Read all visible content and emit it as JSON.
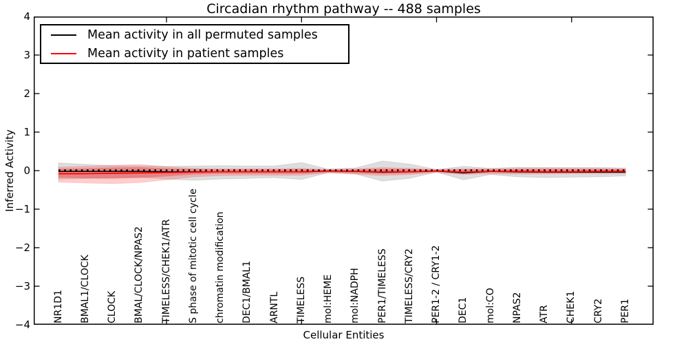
{
  "figure": {
    "title": "Circadian rhythm pathway -- 488 samples",
    "xlabel": "Cellular Entities",
    "ylabel": "Inferred Activity"
  },
  "legend": {
    "items": [
      {
        "label": "Mean activity in all permuted samples",
        "color": "#000000"
      },
      {
        "label": "Mean activity in patient samples",
        "color": "#ff0000"
      }
    ]
  },
  "axes": {
    "y_tick_labels": [
      "4",
      "3",
      "2",
      "1",
      "0",
      "−1",
      "−2",
      "−3",
      "−4"
    ],
    "y_tick_values": [
      4,
      3,
      2,
      1,
      0,
      -1,
      -2,
      -3,
      -4
    ],
    "x_major_tick_indices": [
      4,
      9,
      14,
      19
    ],
    "ylim": [
      -4,
      4
    ]
  },
  "chart_data": {
    "type": "line",
    "title": "Circadian rhythm pathway -- 488 samples",
    "xlabel": "Cellular Entities",
    "ylabel": "Inferred Activity",
    "ylim": [
      -4,
      4
    ],
    "grid": false,
    "legend_position": "upper left",
    "categories": [
      "NR1D1",
      "BMAL1/CLOCK",
      "CLOCK",
      "BMAL/CLOCK/NPAS2",
      "TIMELESS/CHEK1/ATR",
      "S phase of mitotic cell cycle",
      "chromatin modification",
      "DEC1/BMAL1",
      "ARNTL",
      "TIMELESS",
      "mol:HEME",
      "mol:NADPH",
      "PER1/TIMELESS",
      "TIMELESS/CRY2",
      "PER1-2 / CRY1-2",
      "DEC1",
      "mol:CO",
      "NPAS2",
      "ATR",
      "CHEK1",
      "CRY2",
      "PER1"
    ],
    "series": [
      {
        "name": "Mean activity in all permuted samples",
        "color": "#000000",
        "values": [
          -0.02,
          -0.02,
          -0.02,
          -0.02,
          -0.03,
          -0.03,
          -0.03,
          -0.03,
          -0.03,
          -0.03,
          -0.01,
          -0.02,
          -0.04,
          -0.03,
          -0.01,
          -0.06,
          -0.02,
          -0.03,
          -0.04,
          -0.04,
          -0.04,
          -0.04
        ]
      },
      {
        "name": "Mean activity in patient samples",
        "color": "#ff0000",
        "values": [
          -0.08,
          -0.08,
          -0.07,
          -0.06,
          -0.05,
          -0.04,
          -0.03,
          -0.03,
          -0.03,
          -0.03,
          -0.01,
          -0.02,
          -0.03,
          -0.03,
          -0.01,
          -0.04,
          -0.02,
          -0.02,
          -0.03,
          -0.03,
          -0.02,
          -0.02
        ]
      }
    ],
    "bands": [
      {
        "name": "permuted-samples-range",
        "color": "rgba(60,60,60,0.17)",
        "edge": "rgba(0,0,0,0.10)",
        "upper": [
          0.2,
          0.16,
          0.13,
          0.12,
          0.11,
          0.12,
          0.13,
          0.12,
          0.12,
          0.21,
          0.04,
          0.07,
          0.25,
          0.17,
          0.03,
          0.11,
          0.06,
          0.09,
          0.08,
          0.08,
          0.08,
          0.07
        ],
        "lower": [
          -0.22,
          -0.2,
          -0.18,
          -0.17,
          -0.22,
          -0.25,
          -0.22,
          -0.2,
          -0.18,
          -0.23,
          -0.05,
          -0.09,
          -0.27,
          -0.2,
          -0.04,
          -0.24,
          -0.1,
          -0.16,
          -0.18,
          -0.17,
          -0.16,
          -0.14
        ]
      },
      {
        "name": "patient-samples-range",
        "color": "rgba(255,30,30,0.22)",
        "edge": "rgba(255,0,0,0.12)",
        "upper": [
          0.09,
          0.11,
          0.14,
          0.16,
          0.1,
          0.06,
          0.05,
          0.05,
          0.05,
          0.06,
          0.03,
          0.05,
          0.08,
          0.06,
          0.03,
          0.05,
          0.05,
          0.06,
          0.07,
          0.06,
          0.06,
          0.05
        ],
        "lower": [
          -0.3,
          -0.32,
          -0.34,
          -0.31,
          -0.24,
          -0.16,
          -0.13,
          -0.12,
          -0.12,
          -0.12,
          -0.06,
          -0.09,
          -0.13,
          -0.1,
          -0.05,
          -0.1,
          -0.08,
          -0.09,
          -0.09,
          -0.08,
          -0.08,
          -0.08
        ]
      },
      {
        "name": "patient-samples-inner-range",
        "color": "rgba(235,0,0,0.28)",
        "edge": "none",
        "upper": [
          0.05,
          0.06,
          0.08,
          0.09,
          0.06,
          0.04,
          0.03,
          0.03,
          0.03,
          0.04,
          0.02,
          0.03,
          0.05,
          0.04,
          0.02,
          0.03,
          0.03,
          0.04,
          0.04,
          0.04,
          0.04,
          0.03
        ],
        "lower": [
          -0.18,
          -0.2,
          -0.21,
          -0.19,
          -0.15,
          -0.1,
          -0.08,
          -0.08,
          -0.08,
          -0.08,
          -0.04,
          -0.06,
          -0.09,
          -0.07,
          -0.03,
          -0.07,
          -0.05,
          -0.06,
          -0.06,
          -0.06,
          -0.05,
          -0.05
        ]
      }
    ],
    "zero_reference_line": {
      "y": 0.0,
      "style": "dotted",
      "color": "#000000"
    }
  },
  "colors": {
    "permuted_line": "#000000",
    "patient_line": "#ff0000",
    "axis": "#000000",
    "background": "#ffffff"
  }
}
